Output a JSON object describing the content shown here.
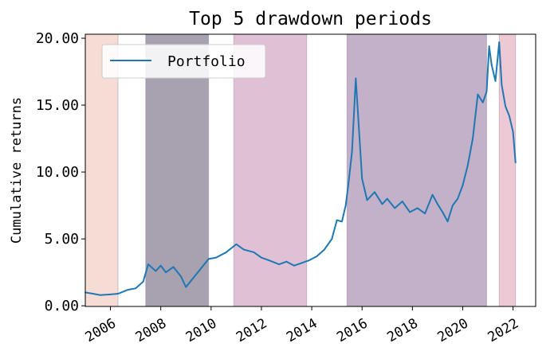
{
  "chart_data": {
    "type": "line",
    "title": "Top 5 drawdown periods",
    "xlabel": "",
    "ylabel": "Cumulative returns",
    "xlim": [
      2005.0,
      2022.9
    ],
    "ylim": [
      -0.05,
      20.3
    ],
    "x_ticks": [
      2006,
      2008,
      2010,
      2012,
      2014,
      2016,
      2018,
      2020,
      2022
    ],
    "x_tick_labels": [
      "2006",
      "2008",
      "2010",
      "2012",
      "2014",
      "2016",
      "2018",
      "2020",
      "2022"
    ],
    "y_ticks": [
      0,
      5,
      10,
      15,
      20
    ],
    "y_tick_labels": [
      "0.00",
      "5.00",
      "10.00",
      "15.00",
      "20.00"
    ],
    "legend": {
      "location": "top-left",
      "entries": [
        "Portfolio"
      ]
    },
    "drawdown_periods": [
      {
        "start": 2005.0,
        "end": 2006.3,
        "color": "#f5ddd5"
      },
      {
        "start": 2007.4,
        "end": 2009.9,
        "color": "#a7a1b0"
      },
      {
        "start": 2010.9,
        "end": 2013.8,
        "color": "#dfc0d4"
      },
      {
        "start": 2015.4,
        "end": 2020.95,
        "color": "#c3b0c9"
      },
      {
        "start": 2021.45,
        "end": 2022.1,
        "color": "#edc9d5"
      }
    ],
    "series": [
      {
        "name": "Portfolio",
        "color": "#1f77b4",
        "x": [
          2005.0,
          2005.3,
          2005.6,
          2006.0,
          2006.3,
          2006.7,
          2007.0,
          2007.3,
          2007.5,
          2007.8,
          2008.0,
          2008.2,
          2008.5,
          2008.8,
          2009.0,
          2009.3,
          2009.6,
          2009.9,
          2010.2,
          2010.6,
          2011.0,
          2011.3,
          2011.7,
          2012.0,
          2012.3,
          2012.7,
          2013.0,
          2013.3,
          2013.6,
          2013.9,
          2014.2,
          2014.5,
          2014.8,
          2015.0,
          2015.2,
          2015.35,
          2015.45,
          2015.6,
          2015.75,
          2016.0,
          2016.2,
          2016.5,
          2016.8,
          2017.0,
          2017.3,
          2017.6,
          2017.9,
          2018.2,
          2018.5,
          2018.8,
          2019.0,
          2019.2,
          2019.4,
          2019.6,
          2019.8,
          2020.0,
          2020.2,
          2020.4,
          2020.6,
          2020.8,
          2020.95,
          2021.05,
          2021.15,
          2021.3,
          2021.45,
          2021.55,
          2021.7,
          2021.85,
          2022.0,
          2022.1
        ],
        "y": [
          1.0,
          0.9,
          0.8,
          0.85,
          0.9,
          1.2,
          1.3,
          1.8,
          3.1,
          2.6,
          3.0,
          2.5,
          2.9,
          2.2,
          1.4,
          2.1,
          2.8,
          3.5,
          3.6,
          4.0,
          4.6,
          4.2,
          4.0,
          3.6,
          3.4,
          3.1,
          3.3,
          3.0,
          3.2,
          3.4,
          3.7,
          4.2,
          5.0,
          6.4,
          6.3,
          7.5,
          9.0,
          11.5,
          17.0,
          9.5,
          7.9,
          8.5,
          7.6,
          8.0,
          7.3,
          7.8,
          7.0,
          7.3,
          6.9,
          8.3,
          7.6,
          7.0,
          6.3,
          7.5,
          8.0,
          9.0,
          10.5,
          12.5,
          15.8,
          15.2,
          16.0,
          19.4,
          18.0,
          16.8,
          19.7,
          16.5,
          14.9,
          14.2,
          13.0,
          10.7
        ]
      }
    ]
  }
}
